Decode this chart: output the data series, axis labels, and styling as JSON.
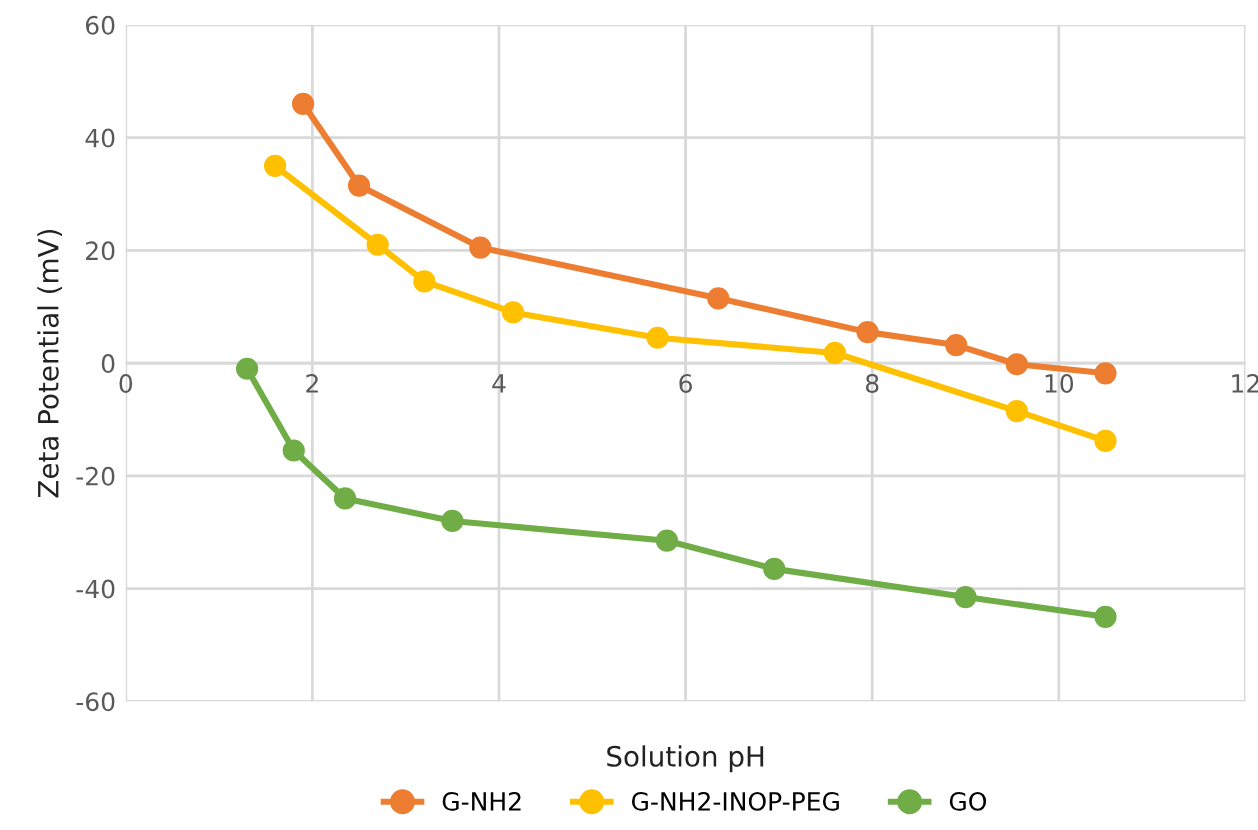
{
  "chart_data": {
    "type": "line",
    "xlabel": "Solution pH",
    "ylabel": "Zeta Potential (mV)",
    "xlim": [
      0,
      12
    ],
    "xticks": [
      0,
      2,
      4,
      6,
      8,
      10,
      12
    ],
    "ylim": [
      -60,
      60
    ],
    "yticks": [
      -60,
      -40,
      -20,
      0,
      20,
      40,
      60
    ],
    "grid": true,
    "legend": "bottom",
    "marker": "circle",
    "line_style": "solid",
    "series": [
      {
        "name": "G-NH2",
        "color": "#ed7d31",
        "x": [
          1.9,
          2.5,
          3.8,
          6.35,
          7.95,
          8.9,
          9.55,
          10.5
        ],
        "values": [
          46,
          31.5,
          20.5,
          11.5,
          5.5,
          3.2,
          -0.2,
          -1.8
        ]
      },
      {
        "name": "G-NH2-INOP-PEG",
        "color": "#ffc000",
        "x": [
          1.6,
          2.7,
          3.2,
          4.15,
          5.7,
          7.6,
          9.55,
          10.5
        ],
        "values": [
          35,
          21,
          14.5,
          9,
          4.5,
          1.8,
          -8.5,
          -13.8
        ]
      },
      {
        "name": "GO",
        "color": "#70ad47",
        "x": [
          1.3,
          1.8,
          2.35,
          3.5,
          5.8,
          6.95,
          9,
          10.5
        ],
        "values": [
          -1,
          -15.5,
          -24,
          -28,
          -31.5,
          -36.5,
          -41.5,
          -45
        ]
      }
    ]
  }
}
